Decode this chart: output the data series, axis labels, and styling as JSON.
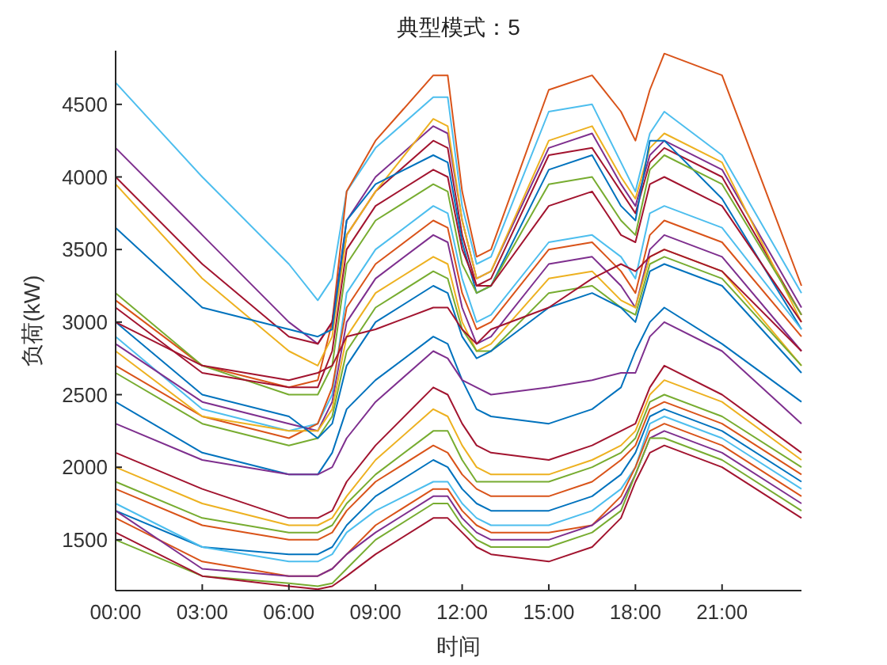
{
  "chart_data": {
    "type": "line",
    "title": "典型模式：5",
    "xlabel": "时间",
    "ylabel": "负荷(kW)",
    "x": [
      0,
      3,
      6,
      7,
      7.5,
      8,
      9,
      11,
      11.5,
      12,
      12.5,
      13,
      15,
      16.5,
      17.5,
      18,
      18.5,
      19,
      21,
      23.75
    ],
    "xlim": [
      0,
      23.75
    ],
    "xticks": [
      {
        "value": 0,
        "label": "00:00"
      },
      {
        "value": 3,
        "label": "03:00"
      },
      {
        "value": 6,
        "label": "06:00"
      },
      {
        "value": 9,
        "label": "09:00"
      },
      {
        "value": 12,
        "label": "12:00"
      },
      {
        "value": 15,
        "label": "15:00"
      },
      {
        "value": 18,
        "label": "18:00"
      },
      {
        "value": 21,
        "label": "21:00"
      }
    ],
    "ylim": [
      1150,
      4870
    ],
    "yticks": [
      1500,
      2000,
      2500,
      3000,
      3500,
      4000,
      4500
    ],
    "series": [
      {
        "color": "#4dbeee",
        "values": [
          4650,
          4000,
          3400,
          3150,
          3300,
          3900,
          4200,
          4550,
          4550,
          3800,
          3400,
          3450,
          4450,
          4500,
          4100,
          3900,
          4300,
          4450,
          4150,
          3200
        ]
      },
      {
        "color": "#d95319",
        "values": [
          3150,
          2700,
          2550,
          2600,
          3000,
          3900,
          4250,
          4700,
          4700,
          3900,
          3450,
          3500,
          4600,
          4700,
          4450,
          4250,
          4600,
          4850,
          4700,
          3250
        ]
      },
      {
        "color": "#7e2f8e",
        "values": [
          4200,
          3600,
          3000,
          2850,
          3000,
          3700,
          4000,
          4350,
          4300,
          3700,
          3300,
          3350,
          4200,
          4300,
          3950,
          3800,
          4150,
          4250,
          4050,
          3100
        ]
      },
      {
        "color": "#a2142f",
        "values": [
          4000,
          3400,
          2900,
          2850,
          3000,
          3600,
          3900,
          4250,
          4200,
          3600,
          3250,
          3300,
          4150,
          4200,
          3900,
          3750,
          4100,
          4200,
          4000,
          3050
        ]
      },
      {
        "color": "#edb120",
        "values": [
          3950,
          3300,
          2800,
          2700,
          2900,
          3600,
          3900,
          4400,
          4350,
          3700,
          3300,
          3350,
          4250,
          4350,
          4000,
          3850,
          4200,
          4300,
          4100,
          3000
        ]
      },
      {
        "color": "#0072bd",
        "values": [
          3650,
          3100,
          2950,
          2900,
          2950,
          3700,
          3950,
          4150,
          4100,
          3550,
          3200,
          3250,
          4050,
          4150,
          3800,
          3700,
          4250,
          4250,
          3850,
          2950
        ]
      },
      {
        "color": "#77ac30",
        "values": [
          3200,
          2700,
          2500,
          2500,
          2700,
          3400,
          3700,
          3950,
          3900,
          3400,
          3200,
          3250,
          3950,
          4000,
          3700,
          3600,
          4050,
          4150,
          3950,
          3050
        ]
      },
      {
        "color": "#a2142f",
        "values": [
          3100,
          2650,
          2550,
          2550,
          2800,
          3500,
          3800,
          4050,
          4000,
          3500,
          3250,
          3250,
          3800,
          3900,
          3600,
          3550,
          3950,
          4000,
          3800,
          3000
        ]
      },
      {
        "color": "#4dbeee",
        "values": [
          2900,
          2400,
          2250,
          2300,
          2500,
          3200,
          3500,
          3800,
          3750,
          3300,
          3000,
          3050,
          3550,
          3600,
          3450,
          3300,
          3750,
          3800,
          3650,
          2950
        ]
      },
      {
        "color": "#d95319",
        "values": [
          2700,
          2350,
          2200,
          2300,
          2550,
          3100,
          3400,
          3700,
          3650,
          3200,
          2950,
          3000,
          3500,
          3550,
          3350,
          3200,
          3600,
          3700,
          3550,
          2900
        ]
      },
      {
        "color": "#7e2f8e",
        "values": [
          2850,
          2450,
          2300,
          2250,
          2450,
          3000,
          3300,
          3600,
          3550,
          3100,
          2850,
          2900,
          3400,
          3450,
          3250,
          3100,
          3500,
          3600,
          3450,
          2800
        ]
      },
      {
        "color": "#edb120",
        "values": [
          2800,
          2350,
          2250,
          2250,
          2400,
          2900,
          3200,
          3450,
          3400,
          3000,
          2800,
          2850,
          3300,
          3350,
          3150,
          3100,
          3450,
          3500,
          3350,
          2700
        ]
      },
      {
        "color": "#77ac30",
        "values": [
          2650,
          2300,
          2150,
          2200,
          2350,
          2800,
          3100,
          3350,
          3300,
          2950,
          2800,
          2800,
          3200,
          3250,
          3100,
          3050,
          3400,
          3450,
          3300,
          2700
        ]
      },
      {
        "color": "#0072bd",
        "values": [
          3000,
          2500,
          2350,
          2200,
          2300,
          2700,
          3000,
          3250,
          3200,
          2900,
          2750,
          2800,
          3100,
          3200,
          3100,
          3000,
          3350,
          3400,
          3250,
          2650
        ]
      },
      {
        "color": "#a2142f",
        "values": [
          3000,
          2700,
          2600,
          2650,
          2700,
          2900,
          2950,
          3100,
          3100,
          2950,
          2850,
          2950,
          3100,
          3300,
          3400,
          3350,
          3450,
          3500,
          3350,
          2800
        ]
      },
      {
        "color": "#0072bd",
        "values": [
          2450,
          2100,
          1950,
          1950,
          2100,
          2400,
          2600,
          2900,
          2850,
          2600,
          2400,
          2350,
          2300,
          2400,
          2550,
          2800,
          3000,
          3100,
          2850,
          2450
        ]
      },
      {
        "color": "#7e2f8e",
        "values": [
          2300,
          2050,
          1950,
          1950,
          2000,
          2200,
          2450,
          2800,
          2750,
          2600,
          2550,
          2500,
          2550,
          2600,
          2650,
          2650,
          2900,
          3000,
          2800,
          2300
        ]
      },
      {
        "color": "#a2142f",
        "values": [
          2100,
          1850,
          1650,
          1650,
          1700,
          1900,
          2150,
          2550,
          2500,
          2300,
          2150,
          2100,
          2050,
          2150,
          2250,
          2300,
          2550,
          2700,
          2500,
          2100
        ]
      },
      {
        "color": "#edb120",
        "values": [
          2000,
          1750,
          1600,
          1600,
          1650,
          1800,
          2050,
          2400,
          2350,
          2150,
          2000,
          1950,
          1950,
          2050,
          2150,
          2250,
          2500,
          2600,
          2450,
          2050
        ]
      },
      {
        "color": "#77ac30",
        "values": [
          1900,
          1650,
          1550,
          1550,
          1600,
          1750,
          1950,
          2250,
          2250,
          2050,
          1900,
          1900,
          1900,
          2000,
          2100,
          2200,
          2450,
          2500,
          2350,
          2000
        ]
      },
      {
        "color": "#d95319",
        "values": [
          1850,
          1600,
          1500,
          1500,
          1550,
          1700,
          1900,
          2150,
          2100,
          1950,
          1850,
          1800,
          1800,
          1900,
          2050,
          2150,
          2400,
          2450,
          2300,
          1950
        ]
      },
      {
        "color": "#0072bd",
        "values": [
          1700,
          1450,
          1400,
          1400,
          1450,
          1600,
          1800,
          2050,
          2000,
          1850,
          1750,
          1700,
          1700,
          1800,
          1950,
          2100,
          2350,
          2400,
          2250,
          1900
        ]
      },
      {
        "color": "#4dbeee",
        "values": [
          1750,
          1450,
          1350,
          1350,
          1400,
          1550,
          1700,
          1900,
          1900,
          1750,
          1650,
          1600,
          1600,
          1700,
          1850,
          2000,
          2300,
          2350,
          2200,
          1850
        ]
      },
      {
        "color": "#d95319",
        "values": [
          1650,
          1350,
          1250,
          1250,
          1300,
          1400,
          1600,
          1850,
          1850,
          1700,
          1600,
          1550,
          1550,
          1600,
          1800,
          2000,
          2250,
          2300,
          2150,
          1800
        ]
      },
      {
        "color": "#7e2f8e",
        "values": [
          1700,
          1300,
          1250,
          1250,
          1300,
          1400,
          1550,
          1800,
          1800,
          1650,
          1550,
          1500,
          1500,
          1600,
          1750,
          1950,
          2200,
          2250,
          2100,
          1750
        ]
      },
      {
        "color": "#77ac30",
        "values": [
          1500,
          1250,
          1200,
          1180,
          1200,
          1300,
          1500,
          1750,
          1750,
          1600,
          1500,
          1450,
          1450,
          1550,
          1700,
          1950,
          2200,
          2200,
          2050,
          1700
        ]
      },
      {
        "color": "#a2142f",
        "values": [
          1550,
          1250,
          1180,
          1160,
          1180,
          1250,
          1400,
          1650,
          1650,
          1550,
          1450,
          1400,
          1350,
          1450,
          1650,
          1900,
          2100,
          2150,
          2000,
          1650
        ]
      }
    ]
  }
}
